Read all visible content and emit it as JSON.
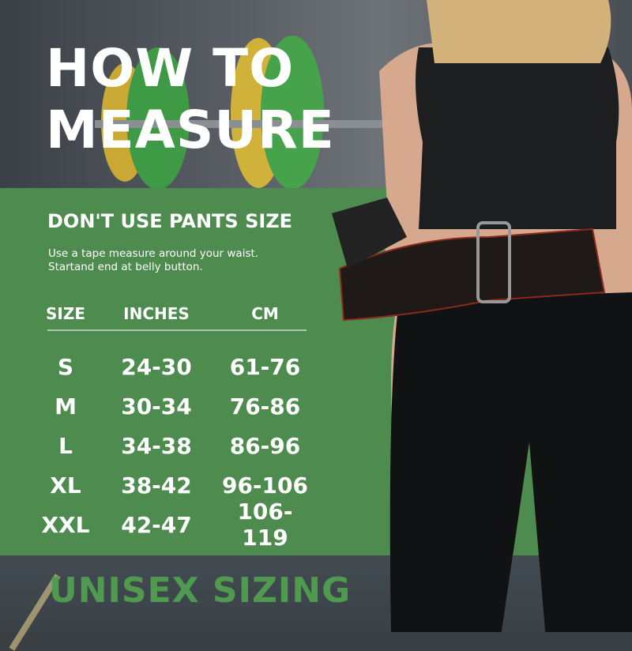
{
  "title": [
    "HOW TO",
    "MEASURE"
  ],
  "subtitle": "DON'T USE PANTS SIZE",
  "description": [
    "Use a tape measure around your waist.",
    "Startand end at belly button."
  ],
  "table": {
    "headers": [
      "SIZE",
      "INCHES",
      "CM"
    ],
    "rows": [
      [
        "S",
        "24-30",
        "61-76"
      ],
      [
        "M",
        "30-34",
        "76-86"
      ],
      [
        "L",
        "34-38",
        "86-96"
      ],
      [
        "XL",
        "38-42",
        "96-106"
      ],
      [
        "XXL",
        "42-47",
        "106-119"
      ]
    ]
  },
  "footer": "UNISEX SIZING",
  "colors": {
    "panel": "#4e8b4e",
    "footer_text": "#4f9a4f"
  }
}
